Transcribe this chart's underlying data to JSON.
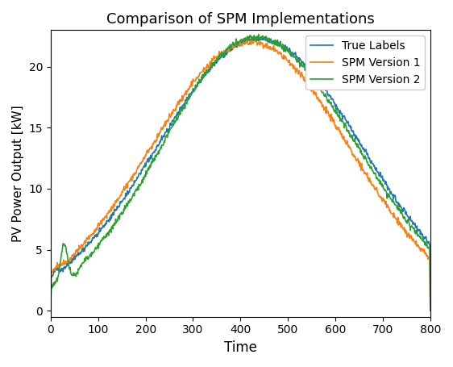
{
  "title": "Comparison of SPM Implementations",
  "xlabel": "Time",
  "ylabel": "PV Power Output [kW]",
  "xlim": [
    0,
    800
  ],
  "ylim": [
    -0.5,
    23
  ],
  "legend_labels": [
    "True Labels",
    "SPM Version 1",
    "SPM Version 2"
  ],
  "colors": [
    "#1f77b4",
    "#ff7f0e",
    "#2ca02c"
  ],
  "figsize": [
    5.62,
    4.55
  ],
  "dpi": 100
}
